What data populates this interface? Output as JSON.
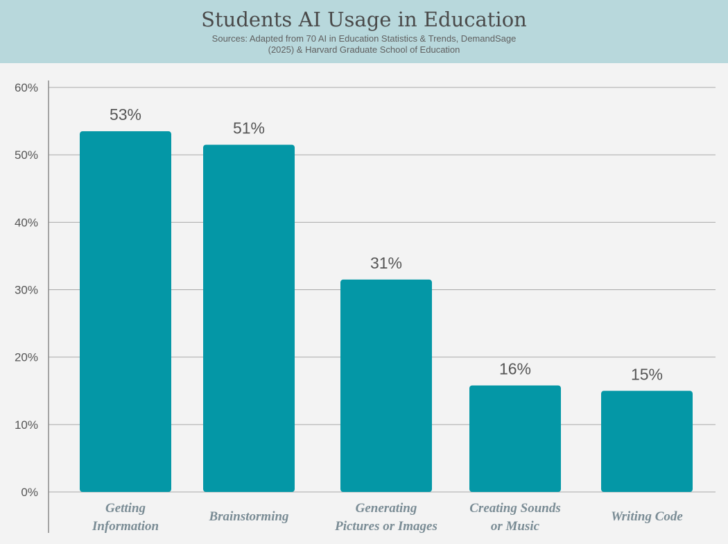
{
  "header": {
    "title": "Students AI Usage in Education",
    "subtitle_line1": "Sources: Adapted from 70 AI in Education Statistics & Trends, DemandSage",
    "subtitle_line2": "(2025) &  Harvard Graduate School of Education"
  },
  "chart_data": {
    "type": "bar",
    "title": "Students AI Usage in Education",
    "categories": [
      [
        "Getting",
        "Information"
      ],
      [
        "Brainstorming"
      ],
      [
        "Generating",
        "Pictures or Images"
      ],
      [
        "Creating Sounds",
        "or Music"
      ],
      [
        "Writing Code"
      ]
    ],
    "values": [
      53.5,
      51.5,
      31.5,
      15.8,
      15
    ],
    "data_labels": [
      "53%",
      "51%",
      "31%",
      "16%",
      "15%"
    ],
    "ylim": [
      0,
      60
    ],
    "yticks": [
      0,
      10,
      20,
      30,
      40,
      50,
      60
    ],
    "ytick_labels": [
      "0%",
      "10%",
      "20%",
      "30%",
      "40%",
      "50%",
      "60%"
    ],
    "xlabel": "",
    "ylabel": "",
    "grid": true,
    "bar_color": "#0497a6"
  }
}
